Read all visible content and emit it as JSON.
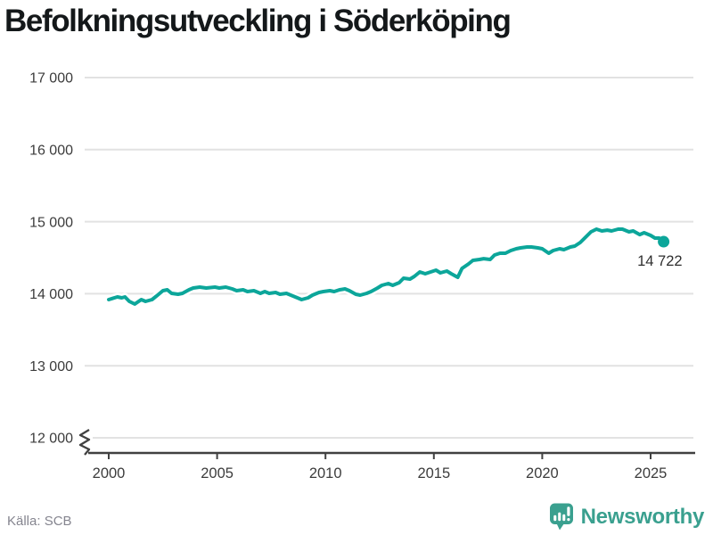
{
  "header": {
    "title": "Befolkningsutveckling i Söderköping"
  },
  "footer": {
    "source": "Källa: SCB",
    "brand": {
      "name": "Newsworthy",
      "color": "#3aa08f",
      "icon": "newsworthy-bubble-chart-icon"
    }
  },
  "chart_data": {
    "type": "line",
    "title": "Befolkningsutveckling i Söderköping",
    "xlabel": "",
    "ylabel": "",
    "grid": "horizontal",
    "xlim": [
      1998.9,
      2027.1
    ],
    "ylim": [
      12000,
      17000
    ],
    "y_axis_break": true,
    "x_ticks": [
      2000,
      2005,
      2010,
      2015,
      2020,
      2025
    ],
    "y_ticks": [
      12000,
      13000,
      14000,
      15000,
      16000,
      17000
    ],
    "y_tick_labels": [
      "12 000",
      "13 000",
      "14 000",
      "15 000",
      "16 000",
      "17 000"
    ],
    "end_label": "14 722",
    "end_value": 14722,
    "series": [
      {
        "name": "Befolkning i Söderköping",
        "color": "#0ca69a",
        "x": [
          2000.0,
          2000.4,
          2000.6,
          2000.75,
          2000.95,
          2001.2,
          2001.5,
          2001.7,
          2002.0,
          2002.2,
          2002.5,
          2002.7,
          2002.9,
          2003.2,
          2003.4,
          2003.7,
          2003.9,
          2004.2,
          2004.5,
          2004.9,
          2005.1,
          2005.4,
          2005.7,
          2005.9,
          2006.2,
          2006.4,
          2006.7,
          2007.0,
          2007.2,
          2007.4,
          2007.7,
          2007.9,
          2008.2,
          2008.4,
          2008.7,
          2008.9,
          2009.2,
          2009.4,
          2009.7,
          2009.9,
          2010.2,
          2010.4,
          2010.65,
          2010.9,
          2011.1,
          2011.4,
          2011.6,
          2011.9,
          2012.1,
          2012.4,
          2012.6,
          2012.9,
          2013.1,
          2013.4,
          2013.6,
          2013.9,
          2014.1,
          2014.35,
          2014.6,
          2014.85,
          2015.1,
          2015.3,
          2015.6,
          2015.8,
          2016.1,
          2016.3,
          2016.6,
          2016.8,
          2017.1,
          2017.3,
          2017.6,
          2017.8,
          2018.05,
          2018.3,
          2018.55,
          2018.8,
          2019.0,
          2019.3,
          2019.5,
          2019.8,
          2020.0,
          2020.3,
          2020.5,
          2020.8,
          2021.0,
          2021.3,
          2021.5,
          2021.75,
          2022.0,
          2022.25,
          2022.5,
          2022.75,
          2023.0,
          2023.2,
          2023.5,
          2023.7,
          2024.0,
          2024.2,
          2024.5,
          2024.7,
          2025.0,
          2025.2,
          2025.4,
          2025.6
        ],
        "values": [
          13918,
          13955,
          13943,
          13955,
          13893,
          13856,
          13918,
          13893,
          13918,
          13967,
          14042,
          14054,
          14005,
          13993,
          14005,
          14054,
          14079,
          14091,
          14079,
          14091,
          14079,
          14091,
          14067,
          14042,
          14054,
          14030,
          14042,
          14005,
          14030,
          14005,
          14017,
          13993,
          14005,
          13980,
          13943,
          13918,
          13943,
          13980,
          14017,
          14030,
          14042,
          14030,
          14054,
          14067,
          14042,
          13993,
          13980,
          14005,
          14030,
          14079,
          14116,
          14141,
          14116,
          14153,
          14215,
          14203,
          14240,
          14302,
          14277,
          14302,
          14327,
          14290,
          14314,
          14277,
          14228,
          14351,
          14413,
          14463,
          14475,
          14487,
          14475,
          14537,
          14562,
          14562,
          14599,
          14624,
          14636,
          14648,
          14648,
          14636,
          14624,
          14562,
          14599,
          14624,
          14612,
          14648,
          14661,
          14710,
          14784,
          14859,
          14896,
          14871,
          14883,
          14871,
          14896,
          14896,
          14859,
          14871,
          14821,
          14846,
          14809,
          14772,
          14772,
          14722
        ]
      }
    ]
  }
}
